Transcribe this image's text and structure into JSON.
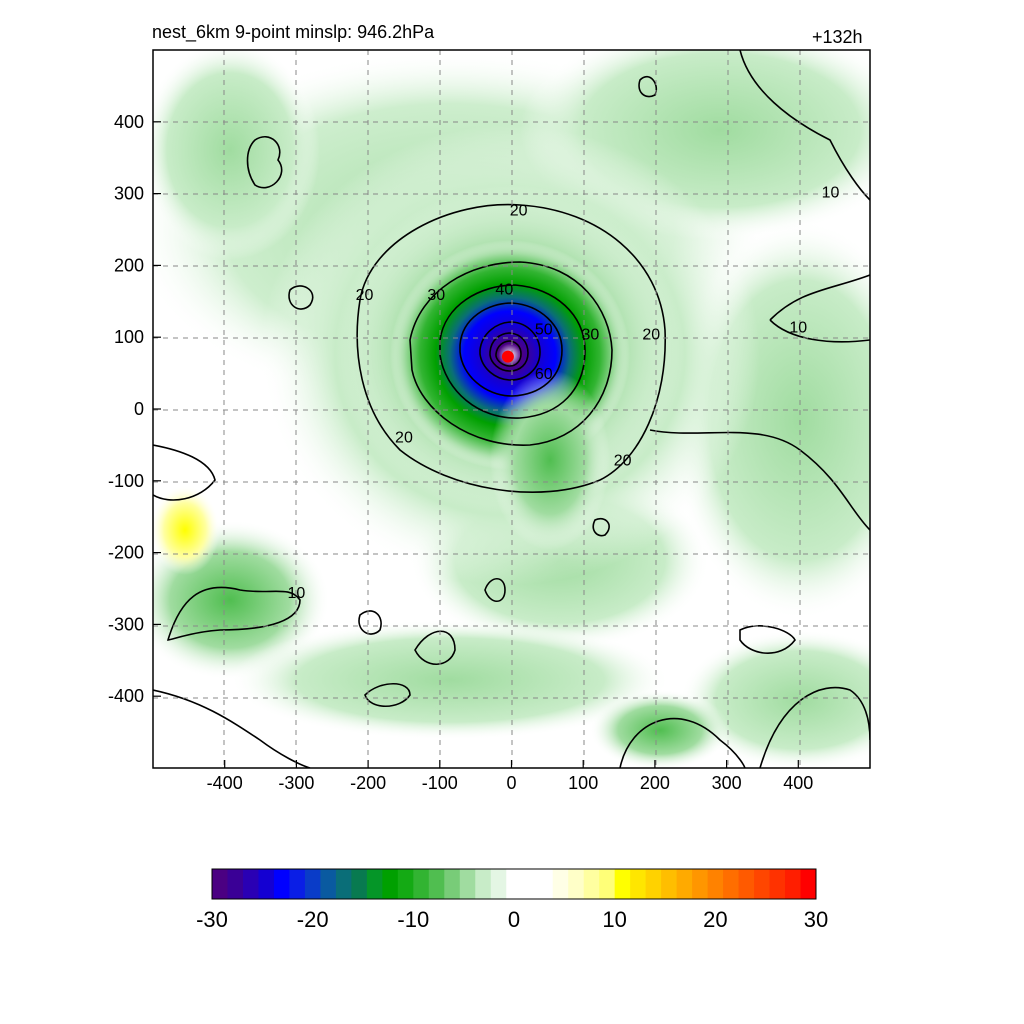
{
  "header": {
    "title": "nest_6km  9-point minslp: 946.2hPa",
    "lead_time": "+132h"
  },
  "chart_data": {
    "type": "heatmap",
    "title": "nest_6km  9-point minslp: 946.2hPa",
    "lead_time_label": "+132h",
    "xlim": [
      -500,
      500
    ],
    "ylim": [
      -500,
      500
    ],
    "x_ticks": [
      -400,
      -300,
      -200,
      -100,
      0,
      100,
      200,
      300,
      400
    ],
    "y_ticks": [
      400,
      300,
      200,
      100,
      0,
      -100,
      -200,
      -300,
      -400
    ],
    "grid": true,
    "storm_center": {
      "x": -5,
      "y": 73,
      "color": "#ff0000"
    },
    "contour_levels": [
      10,
      20,
      30,
      40,
      50,
      60
    ],
    "contour_labels": [
      {
        "text": "20",
        "x": 10,
        "y": 278
      },
      {
        "text": "10",
        "x": 445,
        "y": 303
      },
      {
        "text": "20",
        "x": -205,
        "y": 160
      },
      {
        "text": "30",
        "x": -105,
        "y": 160
      },
      {
        "text": "40",
        "x": -10,
        "y": 168
      },
      {
        "text": "50",
        "x": 45,
        "y": 112
      },
      {
        "text": "30",
        "x": 110,
        "y": 105
      },
      {
        "text": "20",
        "x": 195,
        "y": 105
      },
      {
        "text": "10",
        "x": 400,
        "y": 115
      },
      {
        "text": "60",
        "x": 45,
        "y": 50
      },
      {
        "text": "20",
        "x": -150,
        "y": -38
      },
      {
        "text": "20",
        "x": 155,
        "y": -70
      },
      {
        "text": "10",
        "x": -300,
        "y": -255
      }
    ],
    "colorbar": {
      "min": -30,
      "max": 30,
      "tick_labels": [
        "-30",
        "-20",
        "-10",
        "0",
        "10",
        "20",
        "30"
      ],
      "colors": [
        "#4b0082",
        "#3a0096",
        "#2a00b4",
        "#1400d2",
        "#0000ff",
        "#0a1ee6",
        "#0a3cc8",
        "#0a5aa0",
        "#0a6e78",
        "#087a50",
        "#059628",
        "#00a000",
        "#14aa14",
        "#32b432",
        "#50be50",
        "#78cc78",
        "#a0dca0",
        "#c8ecc8",
        "#e4f6e4",
        "#ffffff",
        "#ffffff",
        "#ffffff",
        "#ffffe6",
        "#ffffc8",
        "#ffffa0",
        "#ffff78",
        "#ffff00",
        "#ffe600",
        "#ffd200",
        "#ffbe00",
        "#ffaa00",
        "#ff9600",
        "#ff8200",
        "#ff6e00",
        "#ff5a00",
        "#ff4600",
        "#ff3200",
        "#ff1e00",
        "#ff0000"
      ]
    }
  }
}
